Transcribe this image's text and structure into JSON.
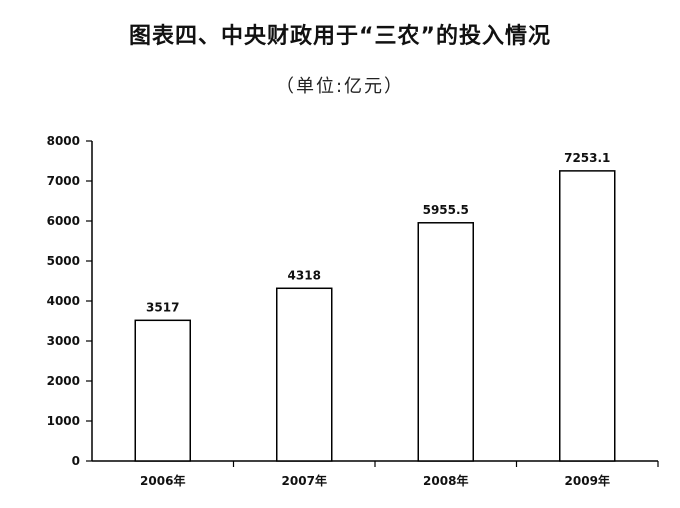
{
  "chart_data": {
    "type": "bar",
    "title": "图表四、中央财政用于“三农”的投入情况",
    "subtitle": "（单位:亿元）",
    "categories": [
      "2006年",
      "2007年",
      "2008年",
      "2009年"
    ],
    "values": [
      3517,
      4318,
      5955.5,
      7253.1
    ],
    "data_labels": [
      "3517",
      "4318",
      "5955.5",
      "7253.1"
    ],
    "y_ticks": [
      "0",
      "1000",
      "2000",
      "3000",
      "4000",
      "5000",
      "6000",
      "7000",
      "8000"
    ],
    "ylim": [
      0,
      8000
    ],
    "grid": false,
    "bar_fill": "#ffffff",
    "bar_stroke": "#000000"
  }
}
